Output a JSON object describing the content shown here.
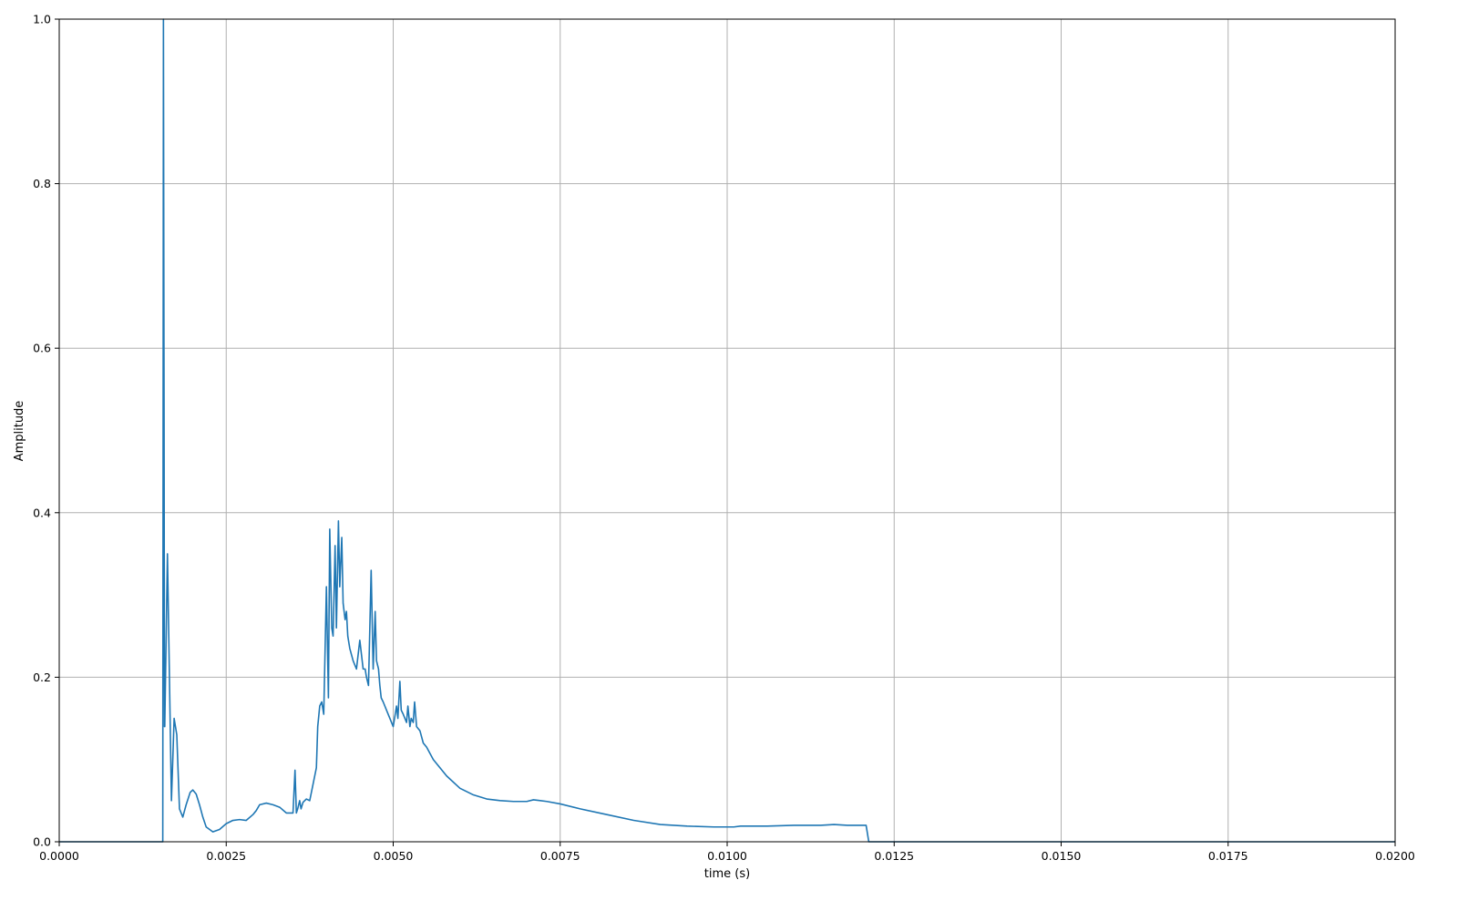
{
  "chart_data": {
    "type": "line",
    "title": "",
    "xlabel": "time (s)",
    "ylabel": "Amplitude",
    "xlim": [
      0.0,
      0.02
    ],
    "ylim": [
      0.0,
      1.0
    ],
    "grid": true,
    "colors": {
      "line": "#1f77b4",
      "grid": "#b0b0b0",
      "axes": "#000000"
    },
    "xticks": [
      {
        "value": 0.0,
        "label": "0.0000"
      },
      {
        "value": 0.0025,
        "label": "0.0025"
      },
      {
        "value": 0.005,
        "label": "0.0050"
      },
      {
        "value": 0.0075,
        "label": "0.0075"
      },
      {
        "value": 0.01,
        "label": "0.0100"
      },
      {
        "value": 0.0125,
        "label": "0.0125"
      },
      {
        "value": 0.015,
        "label": "0.0150"
      },
      {
        "value": 0.0175,
        "label": "0.0175"
      },
      {
        "value": 0.02,
        "label": "0.0200"
      }
    ],
    "yticks": [
      {
        "value": 0.0,
        "label": "0.0"
      },
      {
        "value": 0.2,
        "label": "0.2"
      },
      {
        "value": 0.4,
        "label": "0.4"
      },
      {
        "value": 0.6,
        "label": "0.6"
      },
      {
        "value": 0.8,
        "label": "0.8"
      },
      {
        "value": 1.0,
        "label": "1.0"
      }
    ],
    "series": [
      {
        "x": [
          0.0,
          0.00155,
          0.00156,
          0.00157,
          0.001575,
          0.00158,
          0.00162,
          0.00165,
          0.00168,
          0.00172,
          0.00176,
          0.0018,
          0.00185,
          0.0019,
          0.00196,
          0.002,
          0.00205,
          0.0021,
          0.00215,
          0.0022,
          0.0023,
          0.0024,
          0.0025,
          0.0026,
          0.0027,
          0.0028,
          0.0029,
          0.00295,
          0.003,
          0.0031,
          0.0032,
          0.0033,
          0.0034,
          0.0035,
          0.00353,
          0.00355,
          0.00357,
          0.0036,
          0.00362,
          0.00365,
          0.0037,
          0.00375,
          0.0038,
          0.00385,
          0.00387,
          0.0039,
          0.00393,
          0.00396,
          0.004,
          0.00403,
          0.00405,
          0.00408,
          0.0041,
          0.00413,
          0.00415,
          0.00418,
          0.0042,
          0.00423,
          0.00425,
          0.00428,
          0.0043,
          0.00432,
          0.00435,
          0.0044,
          0.00445,
          0.0045,
          0.00455,
          0.00458,
          0.0046,
          0.00463,
          0.00467,
          0.0047,
          0.00473,
          0.00475,
          0.00478,
          0.0048,
          0.00482,
          0.00485,
          0.0049,
          0.00495,
          0.005,
          0.00505,
          0.00507,
          0.0051,
          0.00512,
          0.00515,
          0.0052,
          0.00522,
          0.00525,
          0.00527,
          0.0053,
          0.00532,
          0.00535,
          0.0054,
          0.00545,
          0.0055,
          0.0056,
          0.0057,
          0.0058,
          0.006,
          0.0062,
          0.0064,
          0.0066,
          0.0068,
          0.007,
          0.0071,
          0.0072,
          0.0073,
          0.0075,
          0.0078,
          0.0082,
          0.0086,
          0.009,
          0.0094,
          0.0098,
          0.0101,
          0.0102,
          0.0106,
          0.011,
          0.0114,
          0.0116,
          0.0118,
          0.0119,
          0.012,
          0.01208,
          0.01212,
          0.0125,
          0.015,
          0.0175,
          0.02
        ],
        "y": [
          0.0,
          0.0,
          1.0,
          0.5,
          0.14,
          0.14,
          0.35,
          0.2,
          0.05,
          0.15,
          0.13,
          0.04,
          0.03,
          0.045,
          0.06,
          0.063,
          0.058,
          0.045,
          0.03,
          0.018,
          0.012,
          0.015,
          0.022,
          0.026,
          0.027,
          0.026,
          0.033,
          0.038,
          0.045,
          0.047,
          0.045,
          0.042,
          0.035,
          0.035,
          0.087,
          0.035,
          0.04,
          0.05,
          0.04,
          0.048,
          0.052,
          0.05,
          0.07,
          0.09,
          0.14,
          0.165,
          0.17,
          0.155,
          0.31,
          0.175,
          0.38,
          0.26,
          0.25,
          0.36,
          0.26,
          0.39,
          0.31,
          0.37,
          0.29,
          0.27,
          0.28,
          0.25,
          0.235,
          0.22,
          0.21,
          0.245,
          0.21,
          0.21,
          0.2,
          0.19,
          0.33,
          0.21,
          0.28,
          0.22,
          0.21,
          0.19,
          0.175,
          0.17,
          0.16,
          0.15,
          0.14,
          0.165,
          0.15,
          0.195,
          0.16,
          0.155,
          0.145,
          0.165,
          0.14,
          0.15,
          0.145,
          0.17,
          0.14,
          0.135,
          0.12,
          0.115,
          0.1,
          0.09,
          0.08,
          0.065,
          0.057,
          0.052,
          0.05,
          0.049,
          0.049,
          0.051,
          0.05,
          0.049,
          0.046,
          0.04,
          0.033,
          0.026,
          0.021,
          0.019,
          0.018,
          0.018,
          0.019,
          0.019,
          0.02,
          0.02,
          0.021,
          0.02,
          0.02,
          0.02,
          0.02,
          0.0,
          0.0,
          0.0,
          0.0,
          0.0
        ]
      }
    ]
  }
}
